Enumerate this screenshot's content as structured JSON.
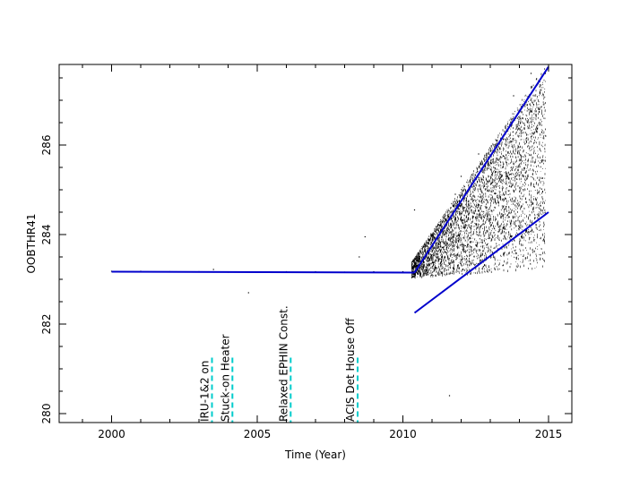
{
  "chart_data": {
    "type": "scatter",
    "title": "",
    "xlabel": "Time (Year)",
    "ylabel": "OOBTHR41",
    "xlim": [
      1998.2,
      2015.8
    ],
    "ylim": [
      279.8,
      287.8
    ],
    "x_ticks": [
      "2000",
      "2005",
      "2010",
      "2015"
    ],
    "y_ticks": [
      "280",
      "282",
      "284",
      "286"
    ],
    "grid": false,
    "series": [
      {
        "name": "",
        "style": "dots",
        "color": "#000000",
        "points": [
          [
            2000.0,
            283.18
          ],
          [
            2001.0,
            283.18
          ],
          [
            2002.0,
            283.17
          ],
          [
            2003.0,
            283.17
          ],
          [
            2003.5,
            283.22
          ],
          [
            2004.0,
            283.16
          ],
          [
            2004.7,
            282.7
          ],
          [
            2005.0,
            283.16
          ],
          [
            2006.0,
            283.17
          ],
          [
            2007.0,
            283.17
          ],
          [
            2008.0,
            283.16
          ],
          [
            2008.5,
            283.5
          ],
          [
            2008.7,
            283.95
          ],
          [
            2009.0,
            283.17
          ],
          [
            2010.0,
            283.17
          ],
          [
            2010.4,
            284.55
          ],
          [
            2010.6,
            283.4
          ],
          [
            2010.9,
            283.6
          ],
          [
            2011.2,
            284.1
          ],
          [
            2011.5,
            283.8
          ],
          [
            2011.6,
            280.4
          ],
          [
            2011.8,
            284.9
          ],
          [
            2012.0,
            285.3
          ],
          [
            2012.3,
            284.6
          ],
          [
            2012.6,
            285.8
          ],
          [
            2012.9,
            284.4
          ],
          [
            2013.2,
            286.1
          ],
          [
            2013.5,
            285.7
          ],
          [
            2013.8,
            287.1
          ],
          [
            2014.1,
            286.6
          ],
          [
            2014.4,
            287.6
          ],
          [
            2014.7,
            287.3
          ],
          [
            2014.9,
            286.2
          ]
        ]
      },
      {
        "name": "",
        "style": "line",
        "color": "#0000cc",
        "points": [
          [
            2000.0,
            283.17
          ],
          [
            2010.4,
            283.15
          ]
        ]
      },
      {
        "name": "",
        "style": "line",
        "color": "#0000cc",
        "points": [
          [
            2010.4,
            283.15
          ],
          [
            2015.0,
            287.75
          ]
        ]
      },
      {
        "name": "",
        "style": "line",
        "color": "#0000cc",
        "points": [
          [
            2010.4,
            282.25
          ],
          [
            2015.0,
            284.5
          ]
        ]
      }
    ],
    "annotations": [
      {
        "text": "IRU-1&2 on",
        "x": 2003.2,
        "color": "#00cccc"
      },
      {
        "text": "Stuck-on Heater",
        "x": 2003.9,
        "color": "#00cccc"
      },
      {
        "text": "Relaxed EPHIN Const.",
        "x": 2005.9,
        "color": "#00cccc"
      },
      {
        "text": "ACIS Det House Off",
        "x": 2008.2,
        "color": "#00cccc"
      }
    ]
  }
}
